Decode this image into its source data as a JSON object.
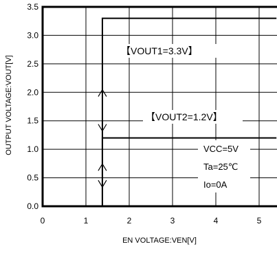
{
  "chart_data": {
    "type": "line",
    "xlabel": "EN VOLTAGE:VEN[V]",
    "ylabel": "OUTPUT VOLTAGE:VOUT[V]",
    "xlim": [
      0,
      5.4
    ],
    "ylim": [
      0,
      3.5
    ],
    "xticks": [
      "0",
      "1",
      "2",
      "3",
      "4",
      "5"
    ],
    "yticks": [
      "0.0",
      "0.5",
      "1.0",
      "1.5",
      "2.0",
      "2.5",
      "3.0",
      "3.5"
    ],
    "grid": true,
    "series": [
      {
        "name": "【VOUT1=3.3V】",
        "x": [
          0,
          1.38,
          1.38,
          5.4
        ],
        "y": [
          0,
          0,
          3.3,
          3.3
        ]
      },
      {
        "name": "【VOUT2=1.2V】",
        "x": [
          0,
          1.38,
          1.38,
          5.4
        ],
        "y": [
          0,
          0,
          1.2,
          1.2
        ]
      }
    ],
    "conditions": [
      "VCC=5V",
      "Ta=25℃",
      "Io=0A"
    ],
    "hysteresis_x": 1.38
  }
}
